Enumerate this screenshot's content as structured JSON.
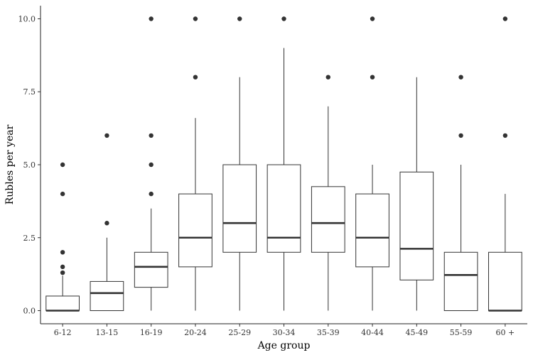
{
  "chart_data": {
    "type": "box",
    "xlabel": "Age group",
    "ylabel": "Rubles per year",
    "ylim": [
      -0.45,
      10.45
    ],
    "yticks": [
      "0.0",
      "2.5",
      "5.0",
      "7.5",
      "10.0"
    ],
    "grid": false,
    "categories": [
      "6-12",
      "13-15",
      "16-19",
      "20-24",
      "25-29",
      "30-34",
      "35-39",
      "40-44",
      "45-49",
      "55-59",
      "60 +"
    ],
    "boxes": [
      {
        "q1": 0,
        "median": 0,
        "q3": 0.5,
        "whisker_low": 0,
        "whisker_high": 1.2,
        "outliers": [
          1.3,
          1.5,
          2,
          4,
          5
        ]
      },
      {
        "q1": 0,
        "median": 0.6,
        "q3": 1,
        "whisker_low": 0,
        "whisker_high": 2.5,
        "outliers": [
          3,
          6
        ]
      },
      {
        "q1": 0.8,
        "median": 1.5,
        "q3": 2,
        "whisker_low": 0,
        "whisker_high": 3.5,
        "outliers": [
          4,
          5,
          6,
          10
        ]
      },
      {
        "q1": 1.5,
        "median": 2.5,
        "q3": 4,
        "whisker_low": 0,
        "whisker_high": 6.6,
        "outliers": [
          8,
          10
        ]
      },
      {
        "q1": 2,
        "median": 3,
        "q3": 5,
        "whisker_low": 0,
        "whisker_high": 8,
        "outliers": [
          10
        ]
      },
      {
        "q1": 2,
        "median": 2.5,
        "q3": 5,
        "whisker_low": 0,
        "whisker_high": 9,
        "outliers": [
          10
        ]
      },
      {
        "q1": 2,
        "median": 3,
        "q3": 4.25,
        "whisker_low": 0,
        "whisker_high": 7,
        "outliers": [
          8
        ]
      },
      {
        "q1": 1.5,
        "median": 2.5,
        "q3": 4,
        "whisker_low": 0,
        "whisker_high": 5,
        "outliers": [
          8,
          10
        ]
      },
      {
        "q1": 1.05,
        "median": 2.12,
        "q3": 4.75,
        "whisker_low": 0,
        "whisker_high": 8,
        "outliers": []
      },
      {
        "q1": 0,
        "median": 1.22,
        "q3": 2,
        "whisker_low": 0,
        "whisker_high": 5,
        "outliers": [
          6,
          8
        ]
      },
      {
        "q1": 0,
        "median": 0,
        "q3": 2,
        "whisker_low": 0,
        "whisker_high": 4,
        "outliers": [
          6,
          10
        ]
      }
    ]
  }
}
